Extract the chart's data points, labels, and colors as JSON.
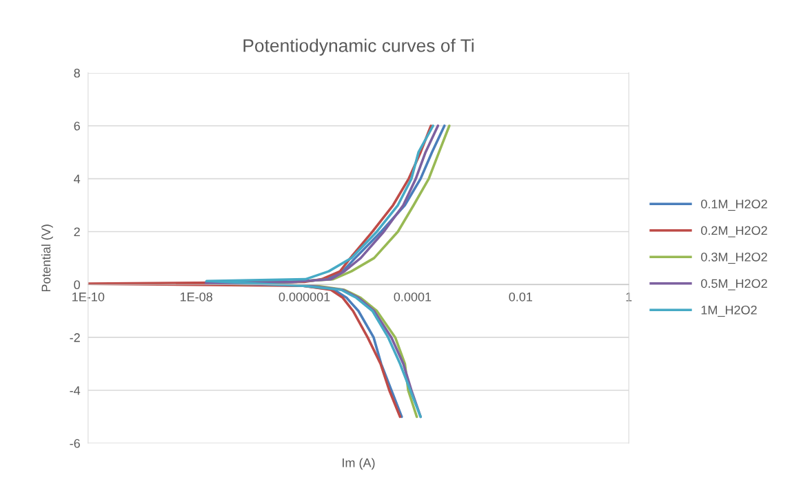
{
  "chart_data": {
    "type": "line",
    "title": "Potentiodynamic curves of Ti",
    "xlabel": "Im (A)",
    "ylabel": "Potential (V)",
    "log": "x",
    "xlim": [
      1e-10,
      1
    ],
    "xticks": [
      {
        "value": 1e-10,
        "label": "1E-10"
      },
      {
        "value": 1e-08,
        "label": "1E-08"
      },
      {
        "value": 1e-06,
        "label": "0.000001"
      },
      {
        "value": 0.0001,
        "label": "0.0001"
      },
      {
        "value": 0.01,
        "label": "0.01"
      },
      1
    ],
    "ylim": [
      -6,
      8
    ],
    "yticks": [
      -6,
      -4,
      -2,
      0,
      2,
      4,
      6,
      8
    ],
    "grid": "y",
    "legend": "right",
    "marker": "none",
    "line_style": "solid",
    "series": [
      {
        "name": "0.1M_H2O2",
        "color": "#4a7ebb",
        "x": [
          6.31e-05,
          4.07e-05,
          2.63e-05,
          1.91e-05,
          1e-05,
          6.03e-06,
          3.55e-06,
          9.55e-07,
          1.5e-08,
          7e-07,
          2.69e-06,
          5.13e-06,
          8.71e-06,
          2.63e-05,
          7.24e-05,
          0.000141,
          0.000229,
          0.000389
        ],
        "values": [
          -5,
          -4,
          -3,
          -2,
          -1,
          -0.5,
          -0.2,
          -0.05,
          0.08,
          0.1,
          0.2,
          0.5,
          1,
          2,
          3,
          4,
          5,
          6
        ]
      },
      {
        "name": "0.2M_H2O2",
        "color": "#be4b48",
        "x": [
          5.89e-05,
          3.72e-05,
          2.57e-05,
          1.48e-05,
          7.94e-06,
          5.13e-06,
          3.09e-06,
          9.55e-07,
          1e-10,
          1e-06,
          2.09e-06,
          4.57e-06,
          7.08e-06,
          1.82e-05,
          4.37e-05,
          8.51e-05,
          0.000141,
          0.000219
        ],
        "values": [
          -5,
          -4,
          -3,
          -2,
          -1,
          -0.5,
          -0.2,
          -0.05,
          0.03,
          0.1,
          0.2,
          0.5,
          1,
          2,
          3,
          4,
          5,
          6
        ]
      },
      {
        "name": "0.3M_H2O2",
        "color": "#98b954",
        "x": [
          0.00012,
          8.32e-05,
          7.24e-05,
          4.79e-05,
          2.19e-05,
          1.1e-05,
          5.5e-06,
          1.7e-06,
          1.8e-08,
          5.25e-07,
          3.39e-06,
          7.41e-06,
          1.95e-05,
          5.37e-05,
          0.000105,
          0.0002,
          0.000309,
          0.000479
        ],
        "values": [
          -5,
          -4,
          -3,
          -2,
          -1,
          -0.5,
          -0.2,
          -0.05,
          0.04,
          0.1,
          0.2,
          0.5,
          1,
          2,
          3,
          4,
          5,
          6
        ]
      },
      {
        "name": "0.5M_H2O2",
        "color": "#7d60a0",
        "x": [
          0.000141,
          9.55e-05,
          6.76e-05,
          4.07e-05,
          1.95e-05,
          1e-05,
          5.13e-06,
          1.29e-06,
          1.5e-08,
          6e-07,
          3.09e-06,
          5.5e-06,
          1.1e-05,
          2.95e-05,
          6.76e-05,
          0.000115,
          0.000174,
          0.000295
        ],
        "values": [
          -5,
          -4,
          -3,
          -2,
          -1,
          -0.5,
          -0.2,
          -0.05,
          0.06,
          0.1,
          0.2,
          0.5,
          1,
          2,
          3,
          4,
          5,
          6
        ]
      },
      {
        "name": "1M_H2O2",
        "color": "#46aac5",
        "x": [
          0.000141,
          9.12e-05,
          5.89e-05,
          3.55e-05,
          1.82e-05,
          9.12e-06,
          4.79e-06,
          9.55e-07,
          1.55e-08,
          1.05e-06,
          2.82e-06,
          7.41e-06,
          2.19e-05,
          5.37e-05,
          9.55e-05,
          0.000129,
          0.00024
        ],
        "values": [
          -5,
          -4,
          -3,
          -2,
          -1,
          -0.5,
          -0.2,
          -0.05,
          0.13,
          0.2,
          0.5,
          1,
          2,
          3,
          4,
          5,
          6
        ]
      }
    ]
  }
}
